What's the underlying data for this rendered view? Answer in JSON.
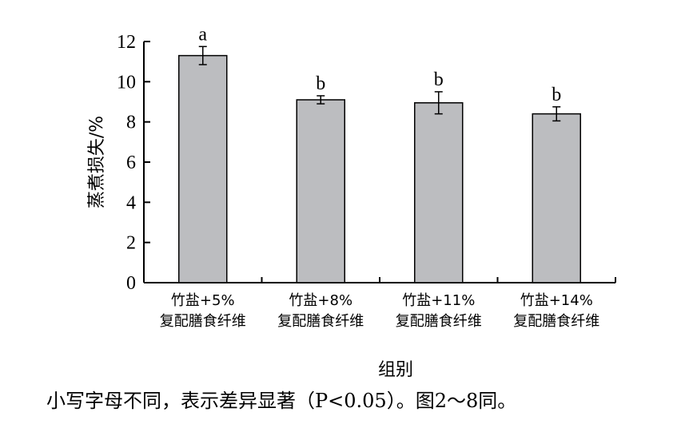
{
  "chart_data": {
    "type": "bar",
    "xlabel": "组别",
    "ylabel": "蒸煮损失/%",
    "ylim": [
      0,
      12
    ],
    "yticks": [
      0,
      2,
      4,
      6,
      8,
      10,
      12
    ],
    "categories": [
      [
        "竹盐+5%",
        "复配膳食纤维"
      ],
      [
        "竹盐+8%",
        "复配膳食纤维"
      ],
      [
        "竹盐+11%",
        "复配膳食纤维"
      ],
      [
        "竹盐+14%",
        "复配膳食纤维"
      ]
    ],
    "values": [
      11.3,
      9.1,
      8.95,
      8.4
    ],
    "errors": [
      0.45,
      0.2,
      0.55,
      0.35
    ],
    "significance": [
      "a",
      "b",
      "b",
      "b"
    ],
    "bar_color": "#bcbdc0",
    "grid": false
  },
  "note": "小写字母不同，表示差异显著（P<0.05）。图2～8同。"
}
